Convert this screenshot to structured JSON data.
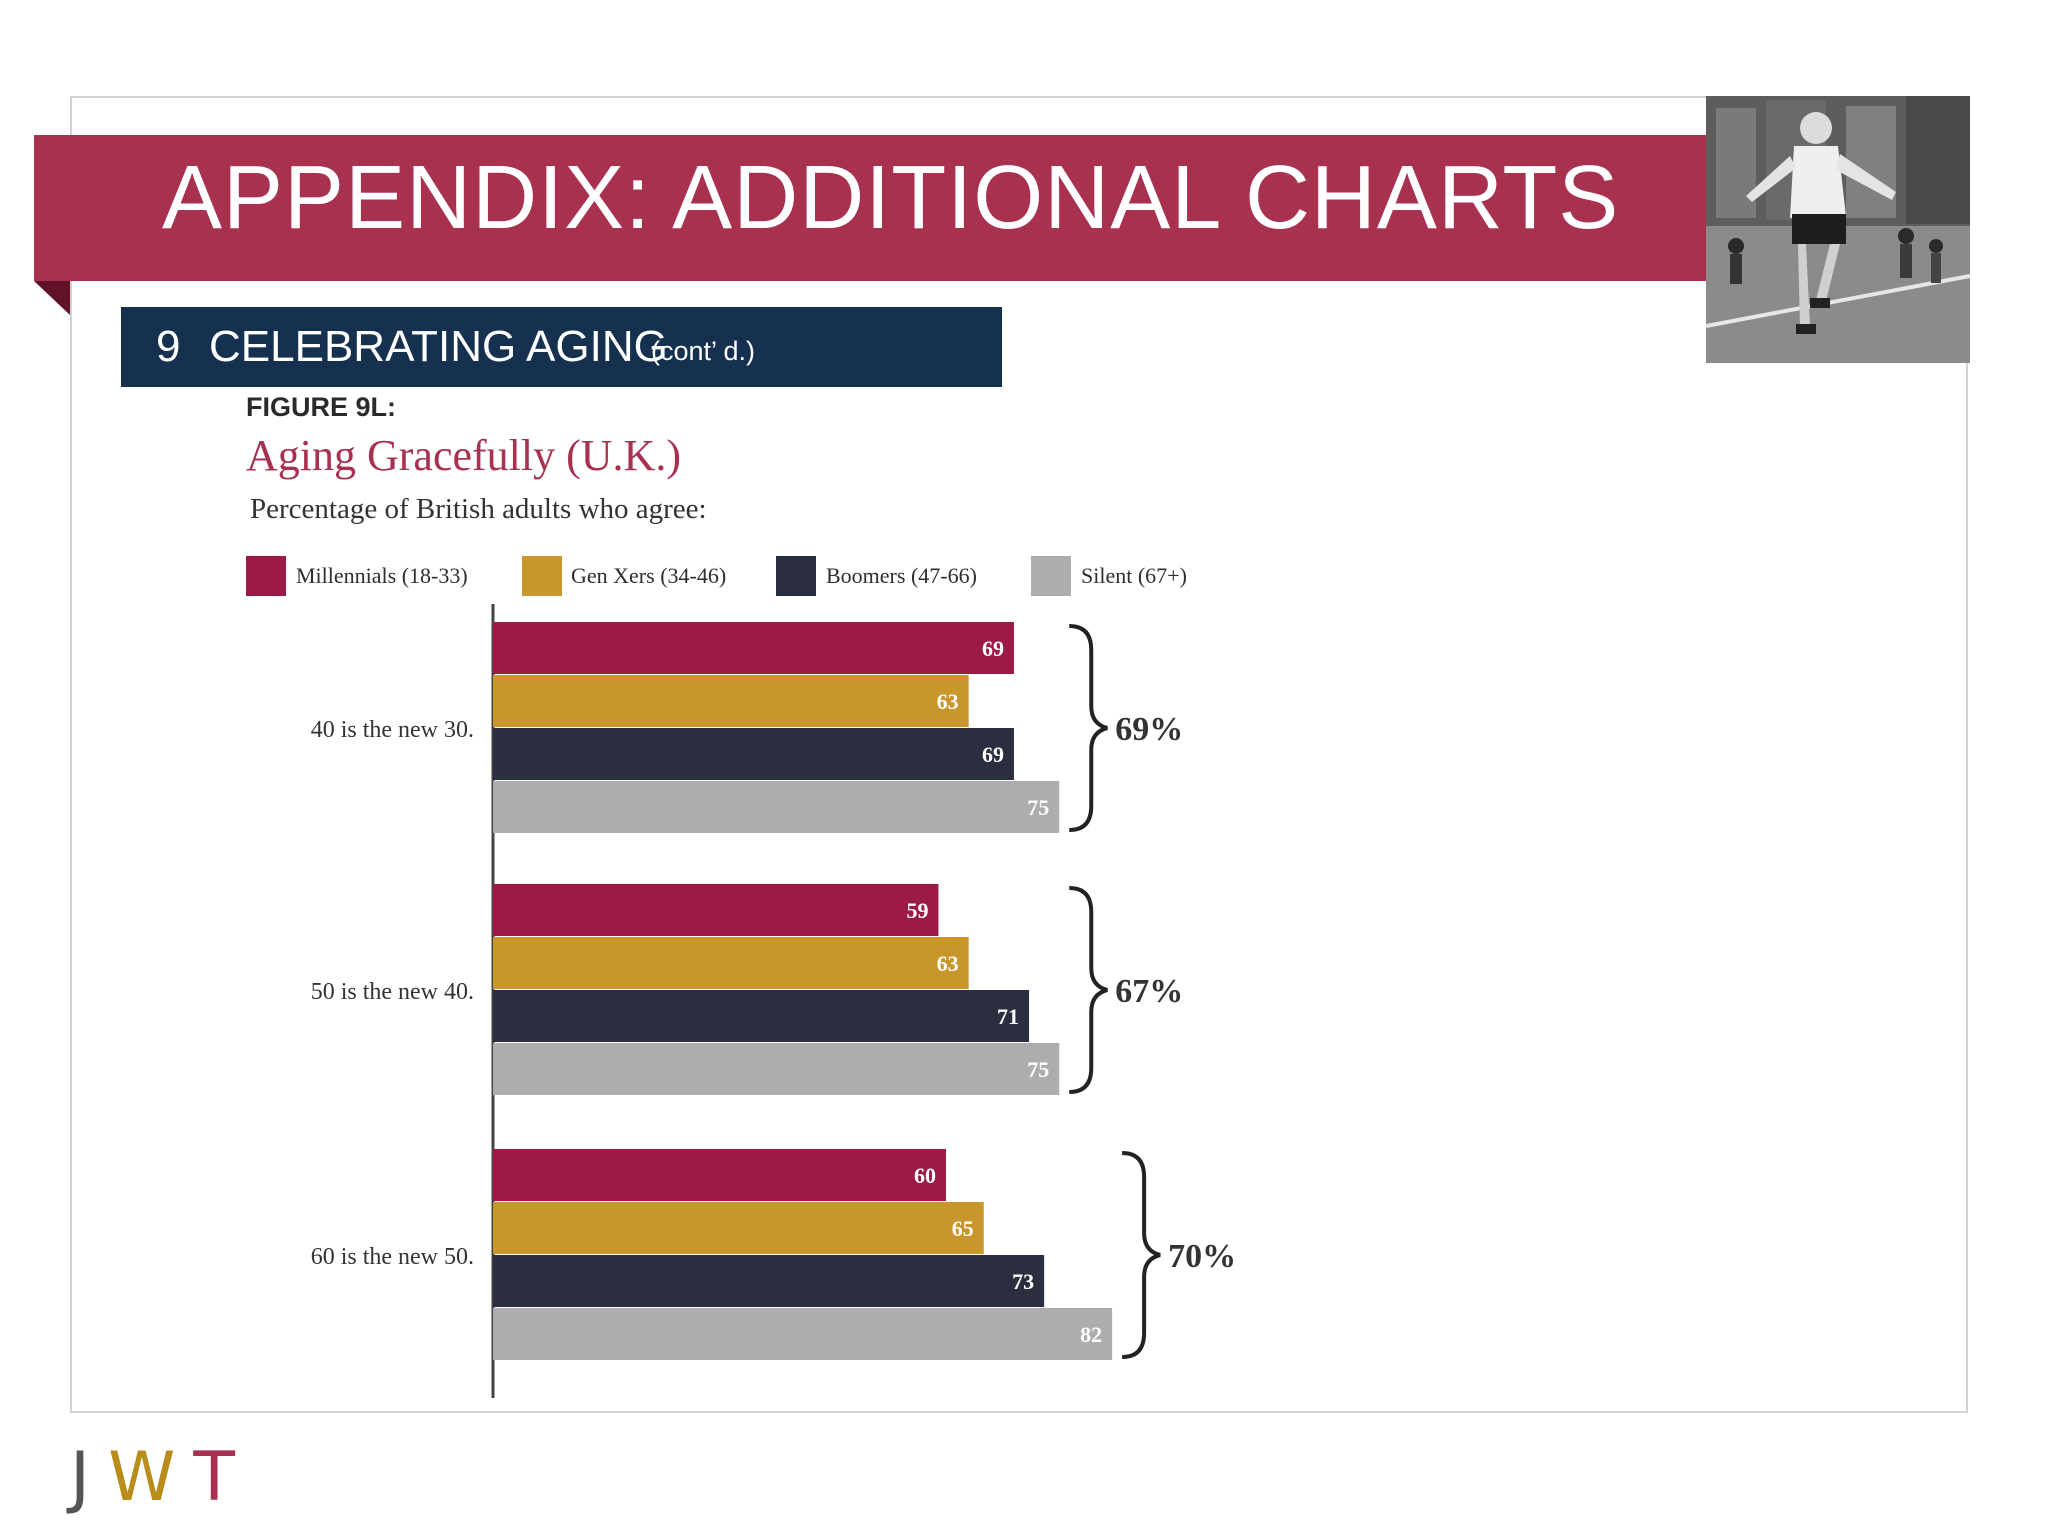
{
  "banner": {
    "title": "APPENDIX: ADDITIONAL CHARTS"
  },
  "section": {
    "number": "9",
    "title": "CELEBRATING AGING",
    "suffix": "(cont’ d.)"
  },
  "figure": {
    "label": "FIGURE 9L:",
    "title": "Aging Gracefully (U.K.)",
    "subtitle": "Percentage of British adults who agree:"
  },
  "colors": {
    "millennials": "#9b1b45",
    "genx": "#c9962b",
    "boomers": "#2b2e3f",
    "silent": "#adadaf",
    "banner": "#a93150",
    "section_bar": "#15314f"
  },
  "chart_data": {
    "type": "bar",
    "orientation": "horizontal",
    "title": "Aging Gracefully (U.K.)",
    "subtitle": "Percentage of British adults who agree:",
    "categories": [
      "40 is the new 30.",
      "50 is the new 40.",
      "60 is the new 50."
    ],
    "series": [
      {
        "name": "Millennials (18-33)",
        "values": [
          69,
          59,
          60
        ],
        "color": "#9b1b45"
      },
      {
        "name": "Gen Xers (34-46)",
        "values": [
          63,
          63,
          65
        ],
        "color": "#c9962b"
      },
      {
        "name": "Boomers (47-66)",
        "values": [
          69,
          71,
          73
        ],
        "color": "#2b2e3f"
      },
      {
        "name": "Silent (67+)",
        "values": [
          75,
          75,
          82
        ],
        "color": "#adadaf"
      }
    ],
    "totals": [
      "69%",
      "67%",
      "70%"
    ],
    "legend_position": "top",
    "grid": false
  },
  "photo": {
    "icon": "runner-photo"
  },
  "footer": {
    "logo_j": "J",
    "logo_w": "W",
    "logo_t": "T"
  }
}
